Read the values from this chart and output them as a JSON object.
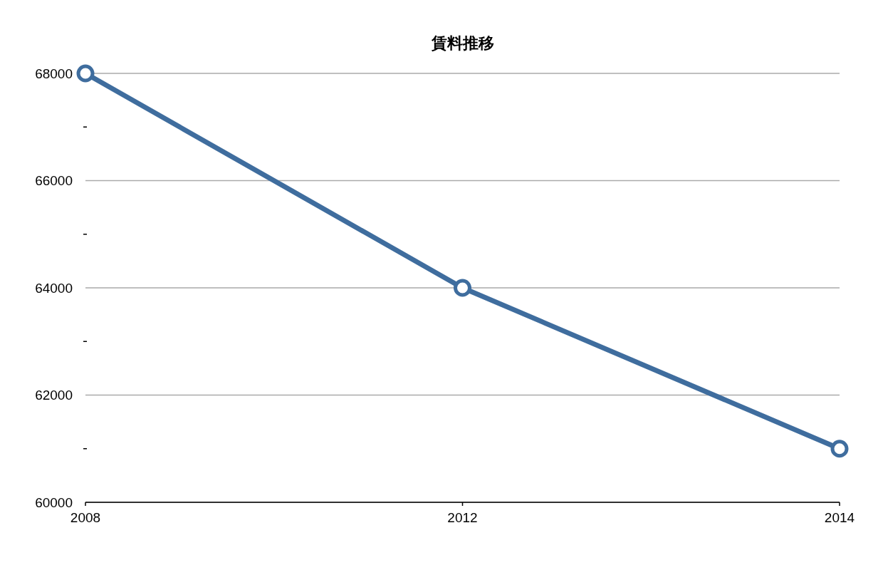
{
  "chart_data": {
    "type": "line",
    "title": "賃料推移",
    "categories": [
      "2008",
      "2012",
      "2014"
    ],
    "series": [
      {
        "color": "#3f6d9e",
        "values": [
          68000,
          64000,
          61000
        ]
      }
    ],
    "ylim": [
      60000,
      68000
    ],
    "yticks": [
      60000,
      {
        "value": 61000,
        "label": null
      },
      62000,
      {
        "value": 63000,
        "label": null
      },
      64000,
      {
        "value": 65000,
        "label": null
      },
      66000,
      {
        "value": 67000,
        "label": null
      },
      68000
    ],
    "grid": "y",
    "marker": "circle",
    "line_style": "solid"
  }
}
